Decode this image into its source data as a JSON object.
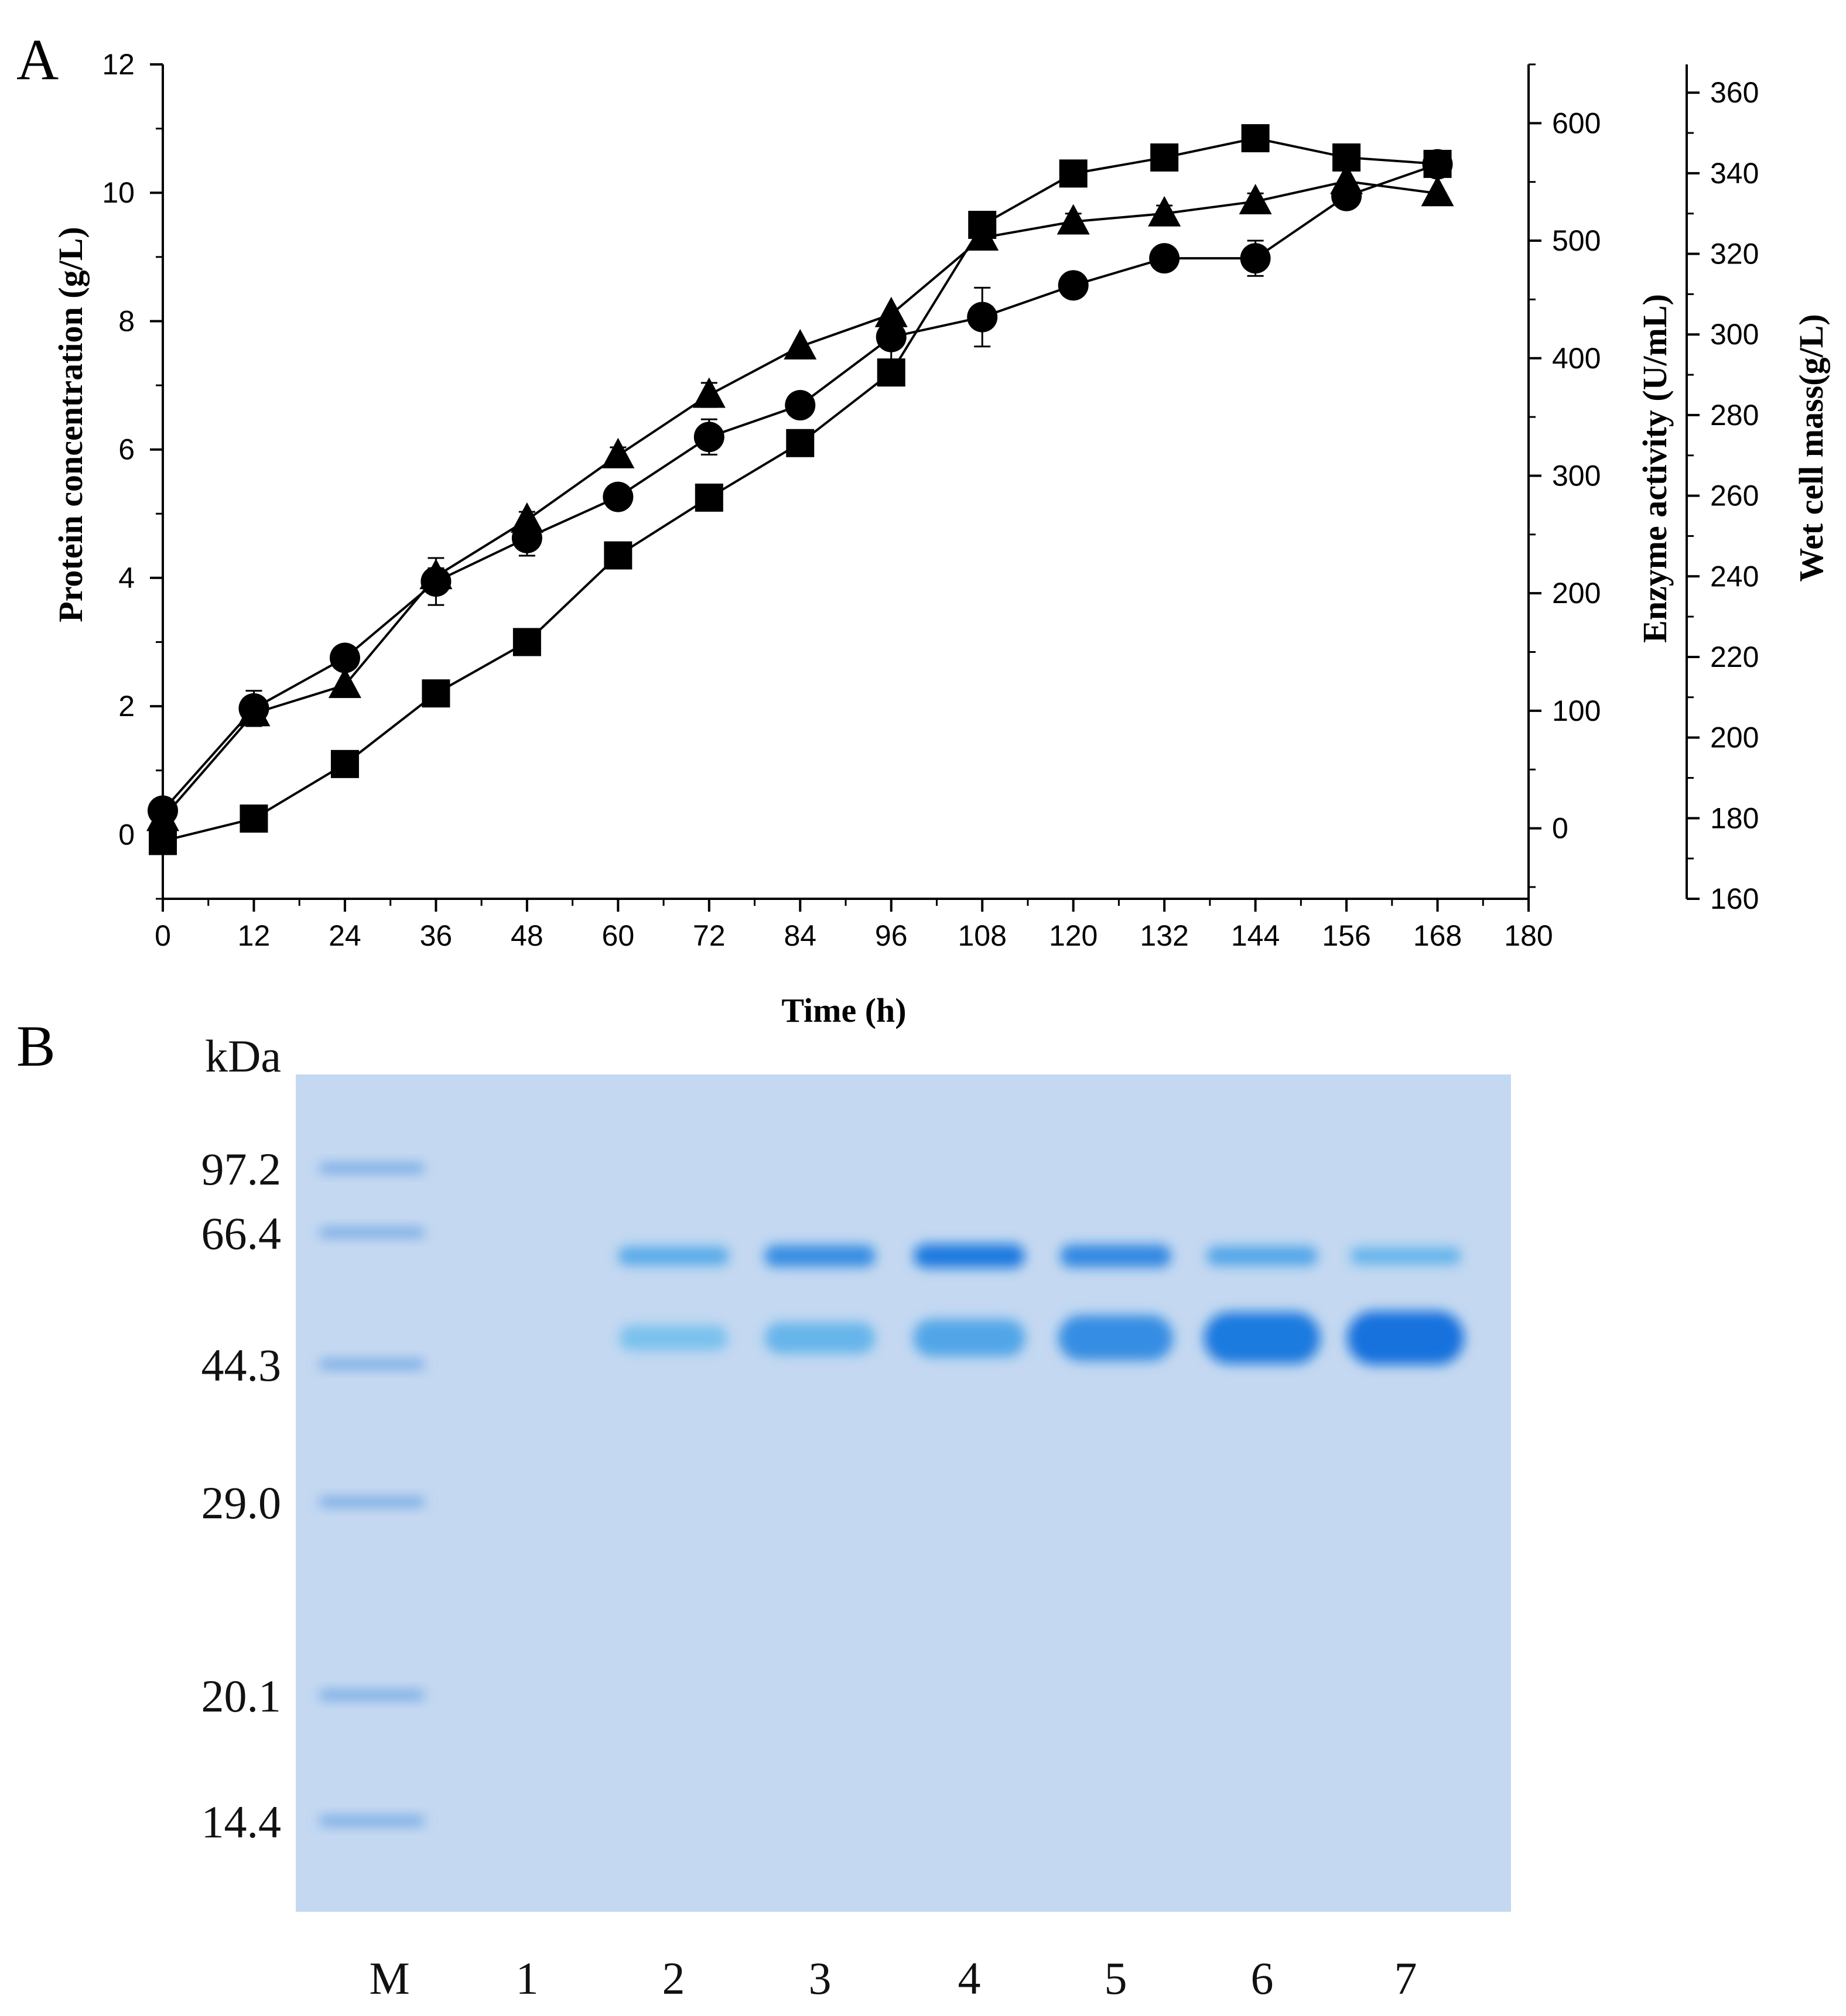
{
  "chart_data": [
    {
      "panel_label": "A",
      "type": "line",
      "xlabel": "Time (h)",
      "xlim": [
        0,
        180
      ],
      "xticks": [
        "0",
        "12",
        "24",
        "36",
        "48",
        "60",
        "72",
        "84",
        "96",
        "108",
        "120",
        "132",
        "144",
        "156",
        "168",
        "180"
      ],
      "axes": [
        {
          "id": "left",
          "label": "Protein concentration (g/L)",
          "lim": [
            -1,
            12
          ],
          "ticks": [
            "0",
            "2",
            "4",
            "6",
            "8",
            "10",
            "12"
          ]
        },
        {
          "id": "right1",
          "label": "Enzyme activity (U/mL)",
          "lim": [
            -60,
            650
          ],
          "ticks": [
            "0",
            "100",
            "200",
            "300",
            "400",
            "500",
            "600"
          ]
        },
        {
          "id": "right2",
          "label": "Wet cell mass(g/L)",
          "lim": [
            160,
            367
          ],
          "ticks": [
            "160",
            "180",
            "200",
            "220",
            "240",
            "260",
            "280",
            "300",
            "320",
            "340",
            "360"
          ]
        }
      ],
      "grid": false,
      "series": [
        {
          "marker": "square",
          "axis": "left",
          "x": [
            0,
            12,
            24,
            36,
            48,
            60,
            72,
            84,
            96,
            108,
            120,
            132,
            144,
            156,
            168
          ],
          "y": [
            -0.1,
            0.25,
            1.1,
            2.2,
            3.0,
            4.35,
            5.25,
            6.1,
            7.2,
            9.5,
            10.3,
            10.55,
            10.85,
            10.55,
            10.45
          ]
        },
        {
          "marker": "circle",
          "axis": "right1",
          "x": [
            0,
            12,
            24,
            36,
            48,
            60,
            72,
            84,
            96,
            108,
            120,
            132,
            144,
            156,
            168
          ],
          "y": [
            15,
            102,
            145,
            210,
            247,
            282,
            333,
            360,
            418,
            435,
            462,
            485,
            485,
            538,
            565
          ],
          "err": [
            0,
            15,
            0,
            20,
            15,
            10,
            15,
            0,
            20,
            25,
            0,
            10,
            15,
            0,
            8
          ]
        },
        {
          "marker": "triangle",
          "axis": "right2",
          "x": [
            0,
            12,
            24,
            36,
            48,
            60,
            72,
            84,
            96,
            108,
            120,
            132,
            144,
            156,
            168
          ],
          "y": [
            180,
            206,
            213,
            240,
            254,
            270,
            285,
            297,
            305,
            324,
            328,
            330,
            333,
            338,
            335
          ],
          "err": [
            0,
            0,
            0,
            2,
            2,
            2,
            3,
            0,
            0,
            2,
            2,
            2,
            2,
            0,
            0
          ]
        }
      ]
    },
    {
      "panel_label": "B",
      "type": "gel",
      "unit_label": "kDa",
      "marker_sizes": [
        "97.2",
        "66.4",
        "44.3",
        "29.0",
        "20.1",
        "14.4"
      ],
      "lanes": [
        "M",
        "1",
        "2",
        "3",
        "4",
        "5",
        "6",
        "7"
      ],
      "band_intensity": {
        "66.4": [
          0.45,
          0,
          0.55,
          0.8,
          0.95,
          0.85,
          0.6,
          0.45
        ],
        "44.3": [
          0.45,
          0,
          0.3,
          0.45,
          0.6,
          0.8,
          0.95,
          1.0
        ]
      }
    }
  ]
}
